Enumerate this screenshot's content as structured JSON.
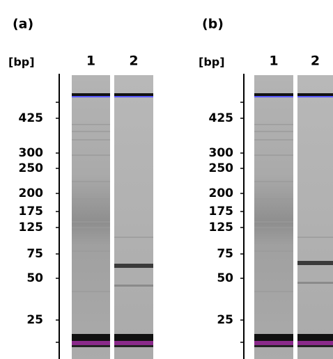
{
  "panels": [
    {
      "label": "(a)",
      "unit": "[bp]",
      "lanes": [
        "1",
        "2"
      ],
      "markers": [
        "425",
        "300",
        "250",
        "200",
        "175",
        "125",
        "75",
        "50",
        "25"
      ]
    },
    {
      "label": "(b)",
      "unit": "[bp]",
      "lanes": [
        "1",
        "2"
      ],
      "markers": [
        "425",
        "300",
        "250",
        "200",
        "175",
        "125",
        "75",
        "50",
        "25"
      ]
    }
  ]
}
